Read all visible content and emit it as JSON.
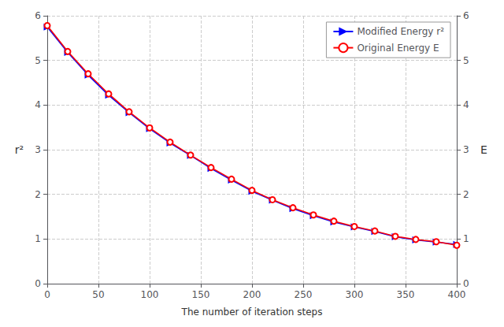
{
  "chart_data": {
    "type": "line",
    "xlabel": "The number of iteration steps",
    "ylabel": "r²",
    "y2label": "E",
    "x": [
      0,
      20,
      40,
      60,
      80,
      100,
      120,
      140,
      160,
      180,
      200,
      220,
      240,
      260,
      280,
      300,
      320,
      340,
      360,
      380,
      400
    ],
    "series": [
      {
        "name": "Modified Energy r²",
        "color": "blue",
        "marker": "triangle-right",
        "line_style": "solid",
        "values": [
          5.75,
          5.18,
          4.67,
          4.22,
          3.83,
          3.47,
          3.15,
          2.87,
          2.58,
          2.32,
          2.07,
          1.87,
          1.68,
          1.52,
          1.38,
          1.27,
          1.17,
          1.05,
          0.98,
          0.93,
          0.88
        ]
      },
      {
        "name": "Original Energy E",
        "color": "red",
        "marker": "circle-open",
        "line_style": "solid",
        "values": [
          5.78,
          5.2,
          4.7,
          4.25,
          3.85,
          3.49,
          3.17,
          2.88,
          2.6,
          2.34,
          2.09,
          1.88,
          1.7,
          1.54,
          1.4,
          1.28,
          1.18,
          1.06,
          0.99,
          0.94,
          0.86
        ]
      }
    ],
    "xlim": [
      0,
      400
    ],
    "xticks": [
      0,
      50,
      100,
      150,
      200,
      250,
      300,
      350,
      400
    ],
    "ylim": [
      0,
      6
    ],
    "yticks": [
      0,
      1,
      2,
      3,
      4,
      5,
      6
    ],
    "y2lim": [
      0,
      6
    ],
    "y2ticks": [
      0,
      1,
      2,
      3,
      4,
      5,
      6
    ],
    "grid": true,
    "legend": "upper right"
  }
}
